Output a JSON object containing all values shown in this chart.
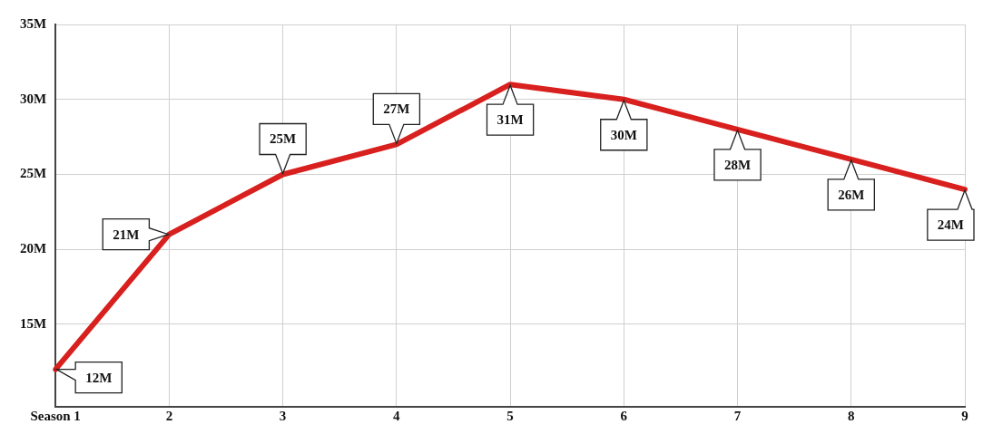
{
  "chart_data": {
    "type": "line",
    "categories": [
      "Season 1",
      "2",
      "3",
      "4",
      "5",
      "6",
      "7",
      "8",
      "9"
    ],
    "series": [
      {
        "color": "#d8201e",
        "values": [
          12,
          21,
          25,
          27,
          31,
          30,
          28,
          26,
          24
        ]
      }
    ],
    "value_labels": [
      "12M",
      "21M",
      "25M",
      "27M",
      "31M",
      "30M",
      "28M",
      "26M",
      "24M"
    ],
    "ylim": [
      9.5,
      35
    ],
    "yticks": [
      {
        "value": 15,
        "label": "15M"
      },
      {
        "value": 20,
        "label": "20M"
      },
      {
        "value": 25,
        "label": "25M"
      },
      {
        "value": 30,
        "label": "30M"
      },
      {
        "value": 35,
        "label": "35M"
      }
    ],
    "grid": true,
    "marker": "none",
    "line_style": "solid",
    "legend": false
  }
}
